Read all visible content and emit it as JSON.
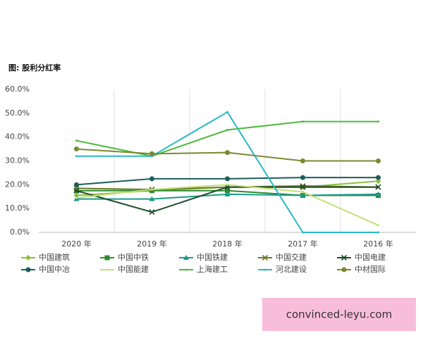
{
  "chart_data": {
    "type": "line",
    "title": "图: 股利分红率",
    "categories": [
      "2020 年",
      "2019 年",
      "2018 年",
      "2017 年",
      "2016 年"
    ],
    "ylim": [
      0,
      60
    ],
    "yticks": [
      {
        "value": 0,
        "label": "0.0%"
      },
      {
        "value": 10,
        "label": "10.0%"
      },
      {
        "value": 20,
        "label": "20.0%"
      },
      {
        "value": 30,
        "label": "30.0%"
      },
      {
        "value": 40,
        "label": "40.0%"
      },
      {
        "value": 50,
        "label": "50.0%"
      },
      {
        "value": 60,
        "label": "60.0%"
      }
    ],
    "series": [
      {
        "name": "中国建筑",
        "color": "#8cbf3f",
        "marker": "diamond",
        "values": [
          15.5,
          17.5,
          19,
          19,
          21.5
        ]
      },
      {
        "name": "中国中铁",
        "color": "#2e8b2e",
        "marker": "square",
        "values": [
          17.5,
          17.5,
          17.5,
          15.5,
          15.5
        ]
      },
      {
        "name": "中国铁建",
        "color": "#1a9a8a",
        "marker": "triangle",
        "values": [
          14,
          14,
          16,
          15.5,
          16
        ]
      },
      {
        "name": "中国交建",
        "color": "#6b7a2a",
        "marker": "x",
        "values": [
          18.5,
          18,
          19,
          19.5,
          19
        ]
      },
      {
        "name": "中国电建",
        "color": "#1e4d2b",
        "marker": "x",
        "values": [
          17.5,
          8.5,
          19,
          19,
          19
        ]
      },
      {
        "name": "中国中冶",
        "color": "#1b5e5a",
        "marker": "circle",
        "values": [
          20,
          22.5,
          22.5,
          23,
          23
        ]
      },
      {
        "name": "中国能建",
        "color": "#c3df7a",
        "marker": "none",
        "values": [
          14.5,
          18,
          20,
          17,
          3
        ]
      },
      {
        "name": "上海建工",
        "color": "#4cbb3a",
        "marker": "none",
        "values": [
          38.5,
          32,
          43,
          46.5,
          46.5
        ]
      },
      {
        "name": "河北建设",
        "color": "#2ab8c8",
        "marker": "none",
        "values": [
          32,
          32,
          50.5,
          0,
          0
        ]
      },
      {
        "name": "中材国际",
        "color": "#7a8a30",
        "marker": "circle",
        "values": [
          35,
          33,
          33.5,
          30,
          30
        ]
      }
    ],
    "watermark": "convinced-leyu.com"
  }
}
